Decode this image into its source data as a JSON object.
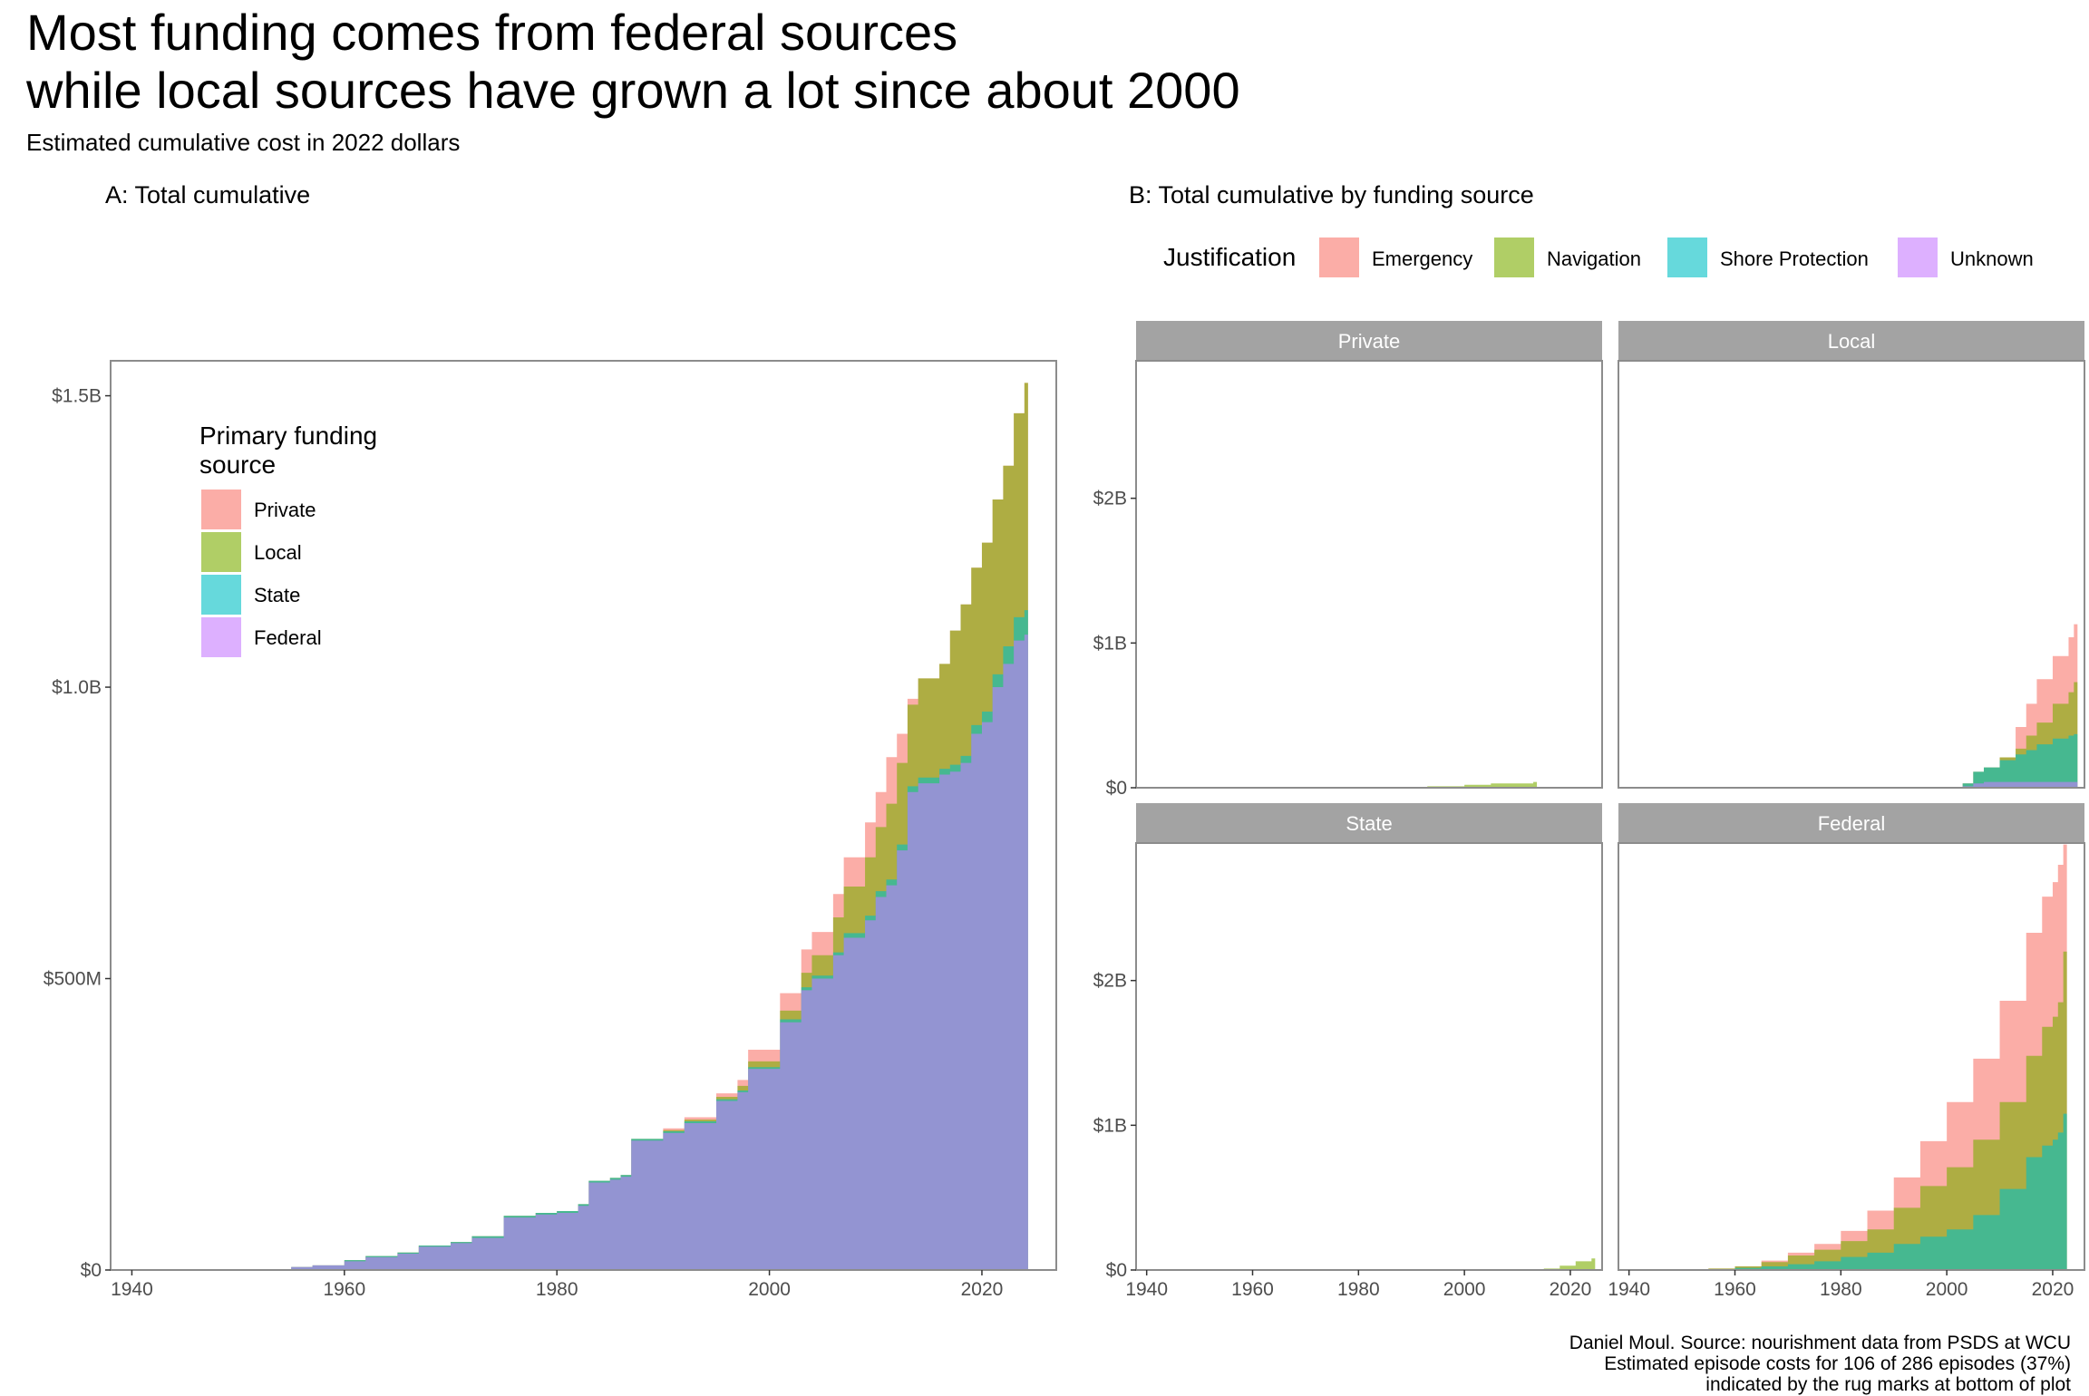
{
  "title_line1": "Most funding comes from federal sources",
  "title_line2": "while local sources have grown a lot since about 2000",
  "subtitle": "Estimated cumulative cost in 2022 dollars",
  "caption": [
    "Daniel Moul. Source: nourishment data from PSDS at WCU",
    "Estimated episode costs for 106 of 286 episodes (37%)",
    "indicated by the rug marks at bottom of plot"
  ],
  "colors": {
    "Private": "#F8766D",
    "Local": "#7CAE00",
    "State": "#00BFC4",
    "Federal": "#C77CFF",
    "Emergency": "#F8766D",
    "Navigation": "#7CAE00",
    "Shore Protection": "#00BFC4",
    "Unknown": "#C77CFF",
    "frame": "#8c8c8c",
    "strip": "#a3a3a3"
  },
  "chart_data": [
    {
      "type": "area",
      "title": "A: Total cumulative",
      "stacked": true,
      "xlim": [
        1938,
        2027
      ],
      "ylim": [
        0,
        1560
      ],
      "x_ticks": [
        1940,
        1960,
        1980,
        2000,
        2020
      ],
      "y_ticks": [
        0,
        500,
        1000,
        1500
      ],
      "y_tick_labels": [
        "$0",
        "$500M",
        "$1.0B",
        "$1.5B"
      ],
      "legend_title": "Primary funding\nsource",
      "legend_position": "top-left inside",
      "legend": [
        "Private",
        "Local",
        "State",
        "Federal"
      ],
      "x": [
        1955,
        1957,
        1960,
        1962,
        1965,
        1967,
        1970,
        1972,
        1975,
        1978,
        1980,
        1982,
        1983,
        1985,
        1986,
        1987,
        1990,
        1992,
        1995,
        1997,
        1998,
        2001,
        2003,
        2004,
        2006,
        2007,
        2009,
        2010,
        2011,
        2012,
        2013,
        2014,
        2016,
        2017,
        2018,
        2019,
        2020,
        2021,
        2022,
        2023,
        2024
      ],
      "series": [
        {
          "name": "Federal",
          "values": [
            5,
            8,
            15,
            22,
            28,
            40,
            46,
            55,
            90,
            95,
            98,
            110,
            150,
            155,
            160,
            222,
            235,
            252,
            290,
            305,
            345,
            425,
            480,
            500,
            540,
            570,
            600,
            640,
            660,
            720,
            820,
            835,
            850,
            855,
            870,
            920,
            940,
            1000,
            1040,
            1080,
            1090
          ]
        },
        {
          "name": "State",
          "values": [
            0,
            0,
            2,
            2,
            2,
            2,
            2,
            3,
            3,
            3,
            3,
            3,
            3,
            3,
            3,
            3,
            3,
            3,
            3,
            3,
            3,
            5,
            5,
            5,
            5,
            8,
            8,
            10,
            10,
            10,
            10,
            10,
            10,
            12,
            12,
            15,
            18,
            22,
            30,
            40,
            42
          ]
        },
        {
          "name": "Local",
          "values": [
            0,
            0,
            0,
            0,
            0,
            0,
            0,
            0,
            0,
            0,
            0,
            0,
            0,
            0,
            0,
            0,
            2,
            3,
            4,
            8,
            10,
            15,
            25,
            35,
            60,
            80,
            100,
            110,
            130,
            140,
            140,
            170,
            180,
            230,
            260,
            270,
            290,
            300,
            310,
            350,
            390
          ]
        },
        {
          "name": "Private",
          "values": [
            0,
            0,
            0,
            0,
            0,
            0,
            0,
            0,
            0,
            0,
            0,
            0,
            0,
            0,
            0,
            0,
            3,
            4,
            6,
            10,
            20,
            30,
            40,
            40,
            40,
            50,
            60,
            60,
            80,
            50,
            10,
            0,
            0,
            0,
            0,
            0,
            0,
            0,
            0,
            0,
            0
          ]
        }
      ]
    },
    {
      "type": "area",
      "title": "B: Total cumulative by funding source",
      "stacked": true,
      "xlim": [
        1938,
        2026
      ],
      "ylim": [
        0,
        2950
      ],
      "x_ticks": [
        1940,
        1960,
        1980,
        2000,
        2020
      ],
      "y_ticks": [
        0,
        1000,
        2000
      ],
      "y_tick_labels": [
        "$0",
        "$1B",
        "$2B"
      ],
      "legend_title": "Justification",
      "legend_position": "top",
      "legend": [
        "Emergency",
        "Navigation",
        "Shore Protection",
        "Unknown"
      ],
      "facets": [
        {
          "name": "Private",
          "x": [
            1985,
            1993,
            2000,
            2005,
            2013
          ],
          "series": [
            {
              "name": "Navigation",
              "values": [
                3,
                10,
                20,
                30,
                40
              ]
            }
          ]
        },
        {
          "name": "Local",
          "x": [
            2003,
            2005,
            2007,
            2010,
            2013,
            2015,
            2017,
            2020,
            2023,
            2024
          ],
          "series": [
            {
              "name": "Unknown",
              "values": [
                10,
                30,
                40,
                40,
                40,
                40,
                40,
                40,
                40,
                40
              ]
            },
            {
              "name": "Shore Protection",
              "values": [
                20,
                80,
                100,
                150,
                190,
                220,
                260,
                300,
                320,
                330
              ]
            },
            {
              "name": "Navigation",
              "values": [
                0,
                0,
                0,
                20,
                40,
                100,
                150,
                240,
                300,
                360
              ]
            },
            {
              "name": "Emergency",
              "values": [
                0,
                0,
                0,
                0,
                150,
                220,
                300,
                330,
                380,
                400
              ]
            }
          ]
        },
        {
          "name": "State",
          "x": [
            1955,
            2015,
            2018,
            2021,
            2024
          ],
          "series": [
            {
              "name": "Navigation",
              "values": [
                5,
                10,
                30,
                60,
                80
              ]
            }
          ]
        },
        {
          "name": "Federal",
          "x": [
            1955,
            1960,
            1965,
            1970,
            1975,
            1980,
            1985,
            1990,
            1995,
            2000,
            2005,
            2010,
            2015,
            2018,
            2020,
            2021,
            2022
          ],
          "series": [
            {
              "name": "Shore Protection",
              "values": [
                5,
                15,
                25,
                40,
                60,
                90,
                120,
                180,
                230,
                280,
                380,
                560,
                780,
                860,
                900,
                950,
                1080
              ]
            },
            {
              "name": "Navigation",
              "values": [
                5,
                10,
                30,
                60,
                80,
                110,
                160,
                250,
                350,
                430,
                520,
                600,
                700,
                820,
                850,
                900,
                1120
              ]
            },
            {
              "name": "Emergency",
              "values": [
                0,
                0,
                10,
                20,
                40,
                70,
                130,
                210,
                310,
                450,
                560,
                700,
                850,
                900,
                930,
                950,
                740
              ]
            }
          ]
        }
      ]
    }
  ]
}
